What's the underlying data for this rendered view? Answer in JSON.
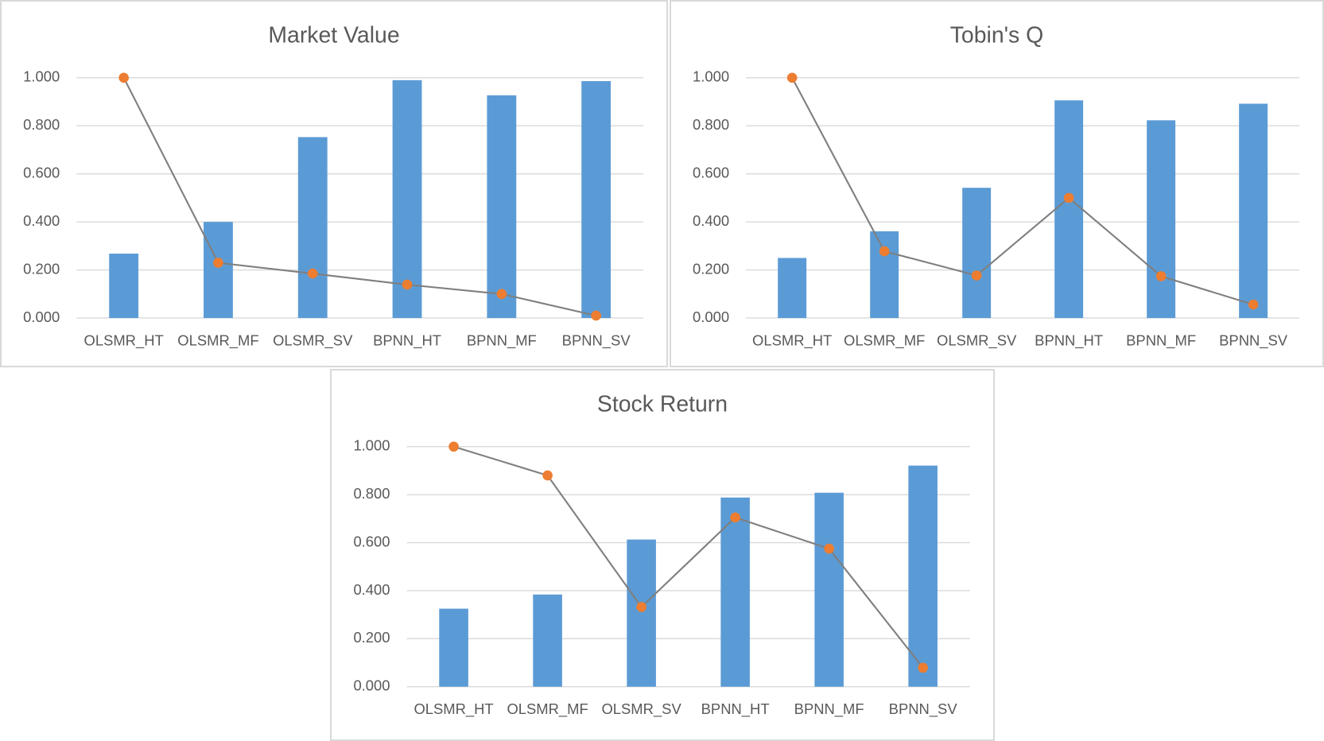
{
  "chart_data": [
    {
      "type": "combo",
      "title": "Market Value",
      "categories": [
        "OLSMR_HT",
        "OLSMR_MF",
        "OLSMR_SV",
        "BPNN_HT",
        "BPNN_MF",
        "BPNN_SV"
      ],
      "series": [
        {
          "type": "bar",
          "color": "#5b9bd5",
          "values": [
            0.268,
            0.4,
            0.753,
            0.99,
            0.927,
            0.986
          ]
        },
        {
          "type": "line",
          "color": "#7f7f7f",
          "marker_color": "#ed7d31",
          "values": [
            1.0,
            0.23,
            0.185,
            0.139,
            0.1,
            0.01
          ]
        }
      ],
      "ylim": [
        0,
        1
      ],
      "yticks": [
        {
          "value": 0,
          "label": "0.000"
        },
        {
          "value": 0.2,
          "label": "0.200"
        },
        {
          "value": 0.4,
          "label": "0.400"
        },
        {
          "value": 0.6,
          "label": "0.600"
        },
        {
          "value": 0.8,
          "label": "0.800"
        },
        {
          "value": 1,
          "label": "1.000"
        }
      ],
      "grid": true
    },
    {
      "type": "combo",
      "title": "Tobin's Q",
      "categories": [
        "OLSMR_HT",
        "OLSMR_MF",
        "OLSMR_SV",
        "BPNN_HT",
        "BPNN_MF",
        "BPNN_SV"
      ],
      "series": [
        {
          "type": "bar",
          "color": "#5b9bd5",
          "values": [
            0.25,
            0.361,
            0.542,
            0.906,
            0.823,
            0.892
          ]
        },
        {
          "type": "line",
          "color": "#7f7f7f",
          "marker_color": "#ed7d31",
          "values": [
            1.0,
            0.278,
            0.177,
            0.5,
            0.174,
            0.056
          ]
        }
      ],
      "ylim": [
        0,
        1
      ],
      "yticks": [
        {
          "value": 0,
          "label": "0.000"
        },
        {
          "value": 0.2,
          "label": "0.200"
        },
        {
          "value": 0.4,
          "label": "0.400"
        },
        {
          "value": 0.6,
          "label": "0.600"
        },
        {
          "value": 0.8,
          "label": "0.800"
        },
        {
          "value": 1,
          "label": "1.000"
        }
      ],
      "grid": true
    },
    {
      "type": "combo",
      "title": "Stock Return",
      "categories": [
        "OLSMR_HT",
        "OLSMR_MF",
        "OLSMR_SV",
        "BPNN_HT",
        "BPNN_MF",
        "BPNN_SV"
      ],
      "series": [
        {
          "type": "bar",
          "color": "#5b9bd5",
          "values": [
            0.325,
            0.384,
            0.613,
            0.788,
            0.808,
            0.921
          ]
        },
        {
          "type": "line",
          "color": "#7f7f7f",
          "marker_color": "#ed7d31",
          "values": [
            1.0,
            0.88,
            0.332,
            0.705,
            0.575,
            0.079
          ]
        }
      ],
      "ylim": [
        0,
        1
      ],
      "yticks": [
        {
          "value": 0,
          "label": "0.000"
        },
        {
          "value": 0.2,
          "label": "0.200"
        },
        {
          "value": 0.4,
          "label": "0.400"
        },
        {
          "value": 0.6,
          "label": "0.600"
        },
        {
          "value": 0.8,
          "label": "0.800"
        },
        {
          "value": 1,
          "label": "1.000"
        }
      ],
      "grid": true
    }
  ]
}
